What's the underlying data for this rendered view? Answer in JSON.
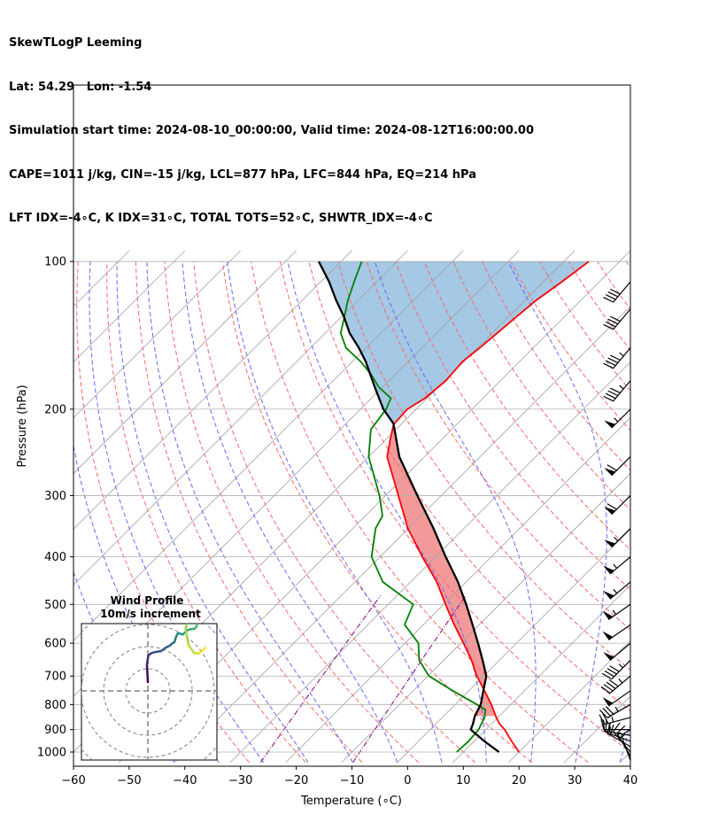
{
  "header": {
    "line1": "SkewTLogP Leeming",
    "line2": "Lat: 54.29   Lon: -1.54",
    "line3": "Simulation start time: 2024-08-10_00:00:00, Valid time: 2024-08-12T16:00:00.00",
    "line4": "CAPE=1011 j/kg, CIN=-15 j/kg, LCL=877 hPa, LFC=844 hPa, EQ=214 hPa",
    "line5": "LFT IDX=-4∘C, K IDX=31∘C, TOTAL TOTS=52∘C, SHWTR_IDX=-4∘C"
  },
  "colors": {
    "temperature": "#ff0000",
    "dewpoint": "#008000",
    "parcel": "#000000",
    "cape_fill": "#f08080",
    "cin_fill": "#7fb0d8",
    "dry_adiabat": "#ff6666",
    "moist_adiabat": "#6666ff",
    "mixing_ratio": "#800080",
    "isotherm": "#a0a0a0"
  },
  "chart_data": {
    "type": "skewt",
    "xlabel": "Temperature (∘C)",
    "ylabel": "Pressure (hPa)",
    "xlim": [
      -60,
      40
    ],
    "ylim": [
      1040,
      100
    ],
    "yscale": "log",
    "xticks": [
      "−60",
      "−50",
      "−40",
      "−30",
      "−20",
      "−10",
      "0",
      "10",
      "20",
      "30",
      "40"
    ],
    "xtick_values": [
      -60,
      -50,
      -40,
      -30,
      -20,
      -10,
      0,
      10,
      20,
      30,
      40
    ],
    "yticks": [
      "1000",
      "900",
      "800",
      "700",
      "600",
      "500",
      "400",
      "300",
      "200",
      "100"
    ],
    "ytick_values": [
      1000,
      900,
      800,
      700,
      600,
      500,
      400,
      300,
      200,
      100
    ],
    "grid": true,
    "temperature_profile": {
      "p": [
        1000,
        950,
        900,
        877,
        850,
        800,
        750,
        700,
        650,
        600,
        550,
        500,
        450,
        400,
        350,
        300,
        270,
        250,
        230,
        215,
        200,
        190,
        175,
        160,
        150,
        140,
        130,
        120,
        110,
        100
      ],
      "t": [
        20,
        16.7,
        13.4,
        11.5,
        9.7,
        6.5,
        2.8,
        -1.2,
        -5,
        -9.5,
        -14.5,
        -19.7,
        -25.3,
        -32.4,
        -40.1,
        -47.7,
        -52.9,
        -56.7,
        -59.3,
        -61.3,
        -61.6,
        -60.4,
        -59.8,
        -60.2,
        -59.6,
        -59.1,
        -58.6,
        -58,
        -56.7,
        -55.5
      ]
    },
    "dewpoint_profile": {
      "p": [
        1000,
        950,
        900,
        850,
        820,
        800,
        750,
        700,
        650,
        600,
        550,
        500,
        450,
        400,
        350,
        330,
        300,
        250,
        220,
        200,
        190,
        180,
        170,
        160,
        150,
        140,
        130,
        120,
        110,
        100
      ],
      "td": [
        8.8,
        9,
        8.7,
        7.6,
        6.4,
        3.9,
        -2.9,
        -9.8,
        -14.4,
        -17.6,
        -23.4,
        -25.5,
        -35,
        -41.5,
        -45.9,
        -46.9,
        -51.1,
        -60,
        -64.5,
        -65.4,
        -66.5,
        -70.8,
        -74.3,
        -78.5,
        -83.6,
        -87.2,
        -89.4,
        -91.8,
        -94,
        -96.3
      ]
    },
    "parcel_profile": {
      "p": [
        1000,
        950,
        900,
        877,
        844,
        800,
        750,
        700,
        650,
        600,
        550,
        500,
        450,
        400,
        350,
        300,
        250,
        214,
        200,
        180,
        160,
        150,
        140,
        130,
        120,
        110,
        100
      ],
      "t": [
        16.4,
        11.8,
        7.3,
        6.7,
        5.6,
        4.6,
        2.6,
        0.5,
        -3,
        -6.9,
        -11.2,
        -16,
        -21.5,
        -28.2,
        -35.5,
        -44.3,
        -54.5,
        -61.5,
        -65.9,
        -71.5,
        -77.6,
        -81.3,
        -85.6,
        -89.4,
        -93.9,
        -98.5,
        -104
      ]
    },
    "annotations": {
      "LCL_hPa": 877,
      "LFC_hPa": 844,
      "EQ_hPa": 214
    },
    "wind_barbs": {
      "p": [
        1040,
        1020,
        1000,
        975,
        950,
        925,
        900,
        850,
        800,
        750,
        700,
        650,
        600,
        550,
        500,
        450,
        400,
        350,
        300,
        250,
        200,
        175,
        150,
        125,
        110
      ],
      "speed_kt": [
        10,
        15,
        15,
        20,
        15,
        15,
        15,
        25,
        35,
        50,
        45,
        45,
        50,
        50,
        55,
        55,
        55,
        55,
        60,
        60,
        55,
        45,
        45,
        40,
        40
      ],
      "direction_deg": [
        340,
        330,
        320,
        300,
        290,
        280,
        270,
        255,
        240,
        235,
        230,
        225,
        230,
        235,
        235,
        230,
        230,
        225,
        225,
        225,
        225,
        220,
        220,
        220,
        220
      ]
    },
    "hodograph": {
      "title": "Wind Profile",
      "subtitle": "10m/s increment",
      "ring_increment_ms": 10,
      "u": [
        0.0,
        -0.1,
        -0.3,
        -0.4,
        -0.1,
        0.2,
        1.5,
        3.0,
        6.0,
        8.0,
        10.0,
        11.0,
        12.0,
        12.6,
        13.5,
        14.0,
        15.8,
        18.0,
        20.0,
        21.0,
        22.0,
        22.5,
        22.3,
        21.0,
        18.5,
        17.0,
        18.5,
        21.0,
        23.0,
        24.5,
        26.0
      ],
      "v": [
        4.0,
        6.0,
        9.0,
        12.0,
        14.0,
        16.0,
        17.0,
        17.5,
        18.0,
        19.5,
        20.5,
        21.5,
        22.0,
        24.0,
        26.0,
        26.0,
        25.5,
        27.5,
        28.0,
        28.0,
        29.0,
        31.0,
        33.0,
        33.5,
        32.5,
        28.0,
        20.5,
        17.0,
        17.0,
        18.0,
        19.5
      ]
    }
  }
}
